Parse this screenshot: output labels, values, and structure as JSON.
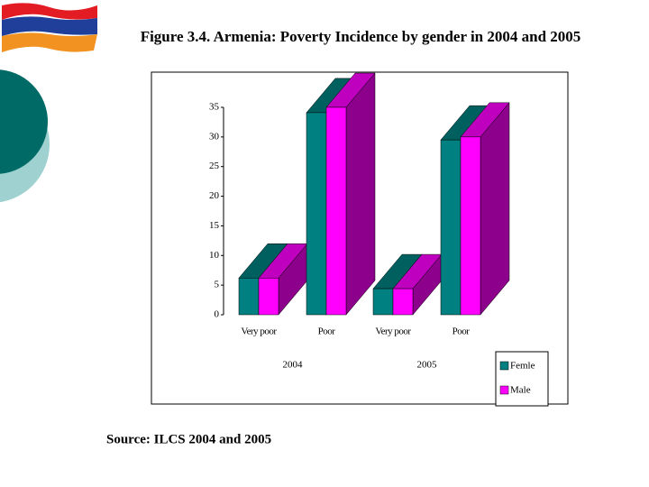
{
  "chart_data": {
    "type": "bar3d",
    "title": "Figure 3.4. Armenia: Poverty Incidence by gender in 2004 and 2005",
    "source": "Source: ILCS 2004 and 2005",
    "categories": [
      "Very poor",
      "Poor",
      "Very poor",
      "Poor"
    ],
    "groups": [
      "2004",
      "2005"
    ],
    "series": [
      {
        "name": "Femle",
        "color": "#008080",
        "values": [
          6.2,
          34.1,
          4.4,
          29.5
        ]
      },
      {
        "name": "Male",
        "color": "#ff00ff",
        "values": [
          6.2,
          35.0,
          4.4,
          30.0
        ]
      }
    ],
    "ylim": [
      0,
      35
    ],
    "yticks": [
      0,
      5,
      10,
      15,
      20,
      25,
      30,
      35
    ],
    "grid": false
  }
}
